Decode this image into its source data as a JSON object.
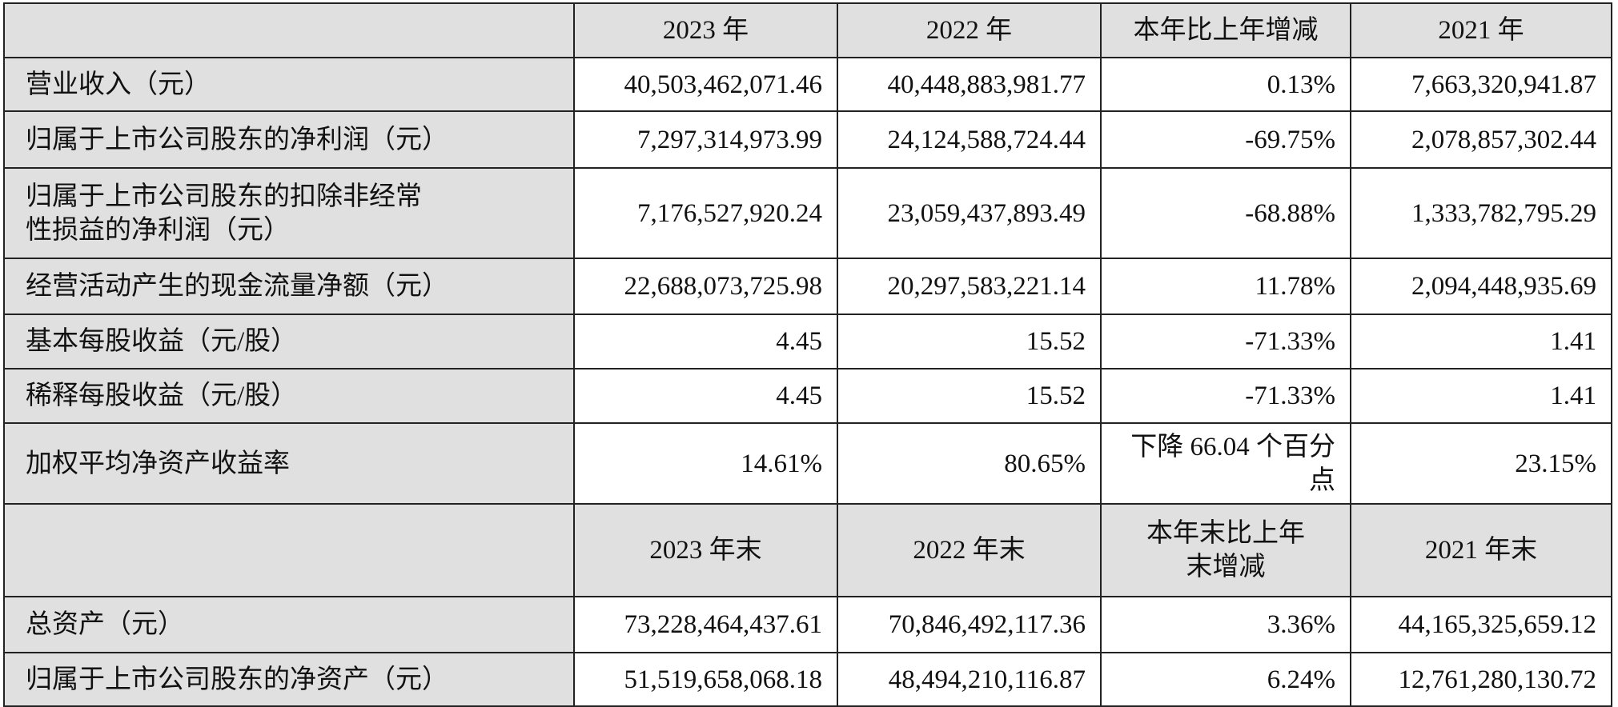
{
  "header1": [
    "",
    "2023 年",
    "2022 年",
    "本年比上年增减",
    "2021 年"
  ],
  "rows1": [
    {
      "label": "营业收入（元）",
      "values": [
        "40,503,462,071.46",
        "40,448,883,981.77",
        "0.13%",
        "7,663,320,941.87"
      ]
    },
    {
      "label": "归属于上市公司股东的净利润（元）",
      "values": [
        "7,297,314,973.99",
        "24,124,588,724.44",
        "-69.75%",
        "2,078,857,302.44"
      ]
    },
    {
      "label": "归属于上市公司股东的扣除非经常性损益的净利润（元）",
      "values": [
        "7,176,527,920.24",
        "23,059,437,893.49",
        "-68.88%",
        "1,333,782,795.29"
      ]
    },
    {
      "label": "经营活动产生的现金流量净额（元）",
      "values": [
        "22,688,073,725.98",
        "20,297,583,221.14",
        "11.78%",
        "2,094,448,935.69"
      ]
    },
    {
      "label": "基本每股收益（元/股）",
      "values": [
        "4.45",
        "15.52",
        "-71.33%",
        "1.41"
      ]
    },
    {
      "label": "稀释每股收益（元/股）",
      "values": [
        "4.45",
        "15.52",
        "-71.33%",
        "1.41"
      ]
    },
    {
      "label": "加权平均净资产收益率",
      "values": [
        "14.61%",
        "80.65%",
        "下降 66.04 个百分点",
        "23.15%"
      ]
    }
  ],
  "header2": [
    "",
    "2023 年末",
    "2022 年末",
    "本年末比上年末增减",
    "2021 年末"
  ],
  "rows2": [
    {
      "label": "总资产（元）",
      "values": [
        "73,228,464,437.61",
        "70,846,492,117.36",
        "3.36%",
        "44,165,325,659.12"
      ]
    },
    {
      "label": "归属于上市公司股东的净资产（元）",
      "values": [
        "51,519,658,068.18",
        "48,494,210,116.87",
        "6.24%",
        "12,761,280,130.72"
      ]
    }
  ]
}
